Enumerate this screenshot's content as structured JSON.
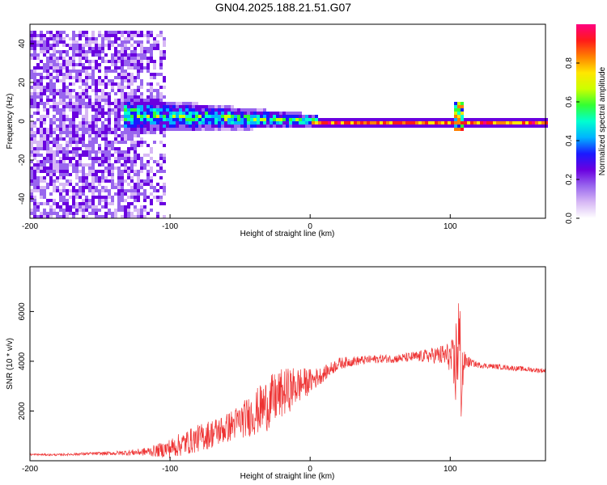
{
  "title": "GN04.2025.188.21.51.G07",
  "chart_data": [
    {
      "type": "heatmap",
      "xlabel": "Height of straight line (km)",
      "ylabel": "Frequency (Hz)",
      "xlim": [
        -200,
        168
      ],
      "ylim": [
        -50,
        50
      ],
      "xticks": [
        "-200",
        "-100",
        "0",
        "100"
      ],
      "yticks": [
        "-40",
        "-20",
        "0",
        "20",
        "40"
      ],
      "colorbar": {
        "label": "Normalized spectral amplitude",
        "range": [
          0.0,
          1.0
        ],
        "ticks": [
          "0.0",
          "0.2",
          "0.4",
          "0.6",
          "0.8"
        ],
        "colormap": "rainbow",
        "colors": [
          "#ffffff",
          "#d7b8f5",
          "#9966ee",
          "#6a00e0",
          "#1a1aff",
          "#00b4ff",
          "#00ffd0",
          "#33ff33",
          "#ccff00",
          "#ffe600",
          "#ff8000",
          "#ff1a1a",
          "#ff0080"
        ]
      },
      "features": [
        {
          "description": "broadband noise",
          "x_range": [
            -200,
            -110
          ],
          "y_range": [
            -50,
            48
          ],
          "amplitude": 0.2
        },
        {
          "description": "dispersed signal band",
          "x_range": [
            -135,
            5
          ],
          "center_hz": [
            4,
            1
          ],
          "halfwidth_hz": [
            6,
            2
          ],
          "amplitude": 0.45
        },
        {
          "description": "narrow carrier line",
          "x_range": [
            0,
            168
          ],
          "center_hz": 0,
          "halfwidth_hz": 1.5,
          "amplitude": 0.85
        },
        {
          "description": "spike",
          "x": 105,
          "y_range": [
            -5,
            10
          ],
          "amplitude": 0.6
        }
      ]
    },
    {
      "type": "line",
      "xlabel": "Height of straight line (km)",
      "ylabel": "SNR (10 * v/v)",
      "xlim": [
        -200,
        168
      ],
      "ylim": [
        0,
        7800
      ],
      "xticks": [
        "-200",
        "-100",
        "0",
        "100"
      ],
      "yticks": [
        "2000",
        "4000",
        "6000"
      ],
      "series": [
        {
          "color": "#ee3333",
          "x": [
            -200,
            -180,
            -160,
            -140,
            -120,
            -110,
            -100,
            -90,
            -80,
            -70,
            -60,
            -50,
            -40,
            -30,
            -20,
            -10,
            0,
            10,
            20,
            30,
            40,
            50,
            60,
            70,
            80,
            90,
            100,
            103,
            106,
            108,
            110,
            115,
            120,
            130,
            140,
            150,
            160,
            168
          ],
          "y": [
            250,
            240,
            280,
            300,
            350,
            400,
            500,
            700,
            900,
            1100,
            1300,
            1600,
            1900,
            2300,
            2700,
            3000,
            3200,
            3500,
            3900,
            4000,
            4050,
            4100,
            4100,
            4150,
            4200,
            4250,
            4200,
            3500,
            5000,
            3300,
            4000,
            3950,
            3850,
            3800,
            3750,
            3700,
            3650,
            3620
          ],
          "noise": [
            40,
            40,
            60,
            80,
            150,
            250,
            400,
            500,
            550,
            600,
            600,
            700,
            900,
            1100,
            1000,
            800,
            500,
            300,
            250,
            200,
            180,
            170,
            170,
            200,
            250,
            350,
            600,
            1500,
            2500,
            2000,
            400,
            150,
            120,
            100,
            100,
            100,
            100,
            100
          ]
        }
      ]
    }
  ]
}
